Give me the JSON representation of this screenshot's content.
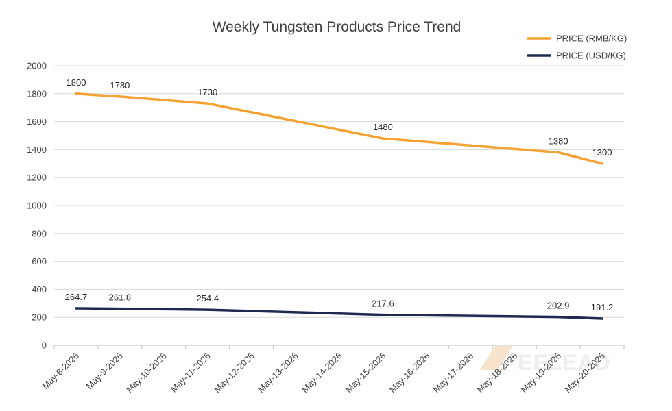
{
  "chart_data": {
    "type": "line",
    "title": "Weekly Tungsten Products Price Trend",
    "xlabel": "",
    "ylabel": "",
    "categories": [
      "May-8-2026",
      "May-9-2026",
      "May-10-2026",
      "May-11-2026",
      "May-12-2026",
      "May-13-2026",
      "May-14-2026",
      "May-15-2026",
      "May-16-2026",
      "May-17-2026",
      "May-18-2026",
      "May-19-2026",
      "May-20-2026"
    ],
    "y_ticks": [
      "0",
      "200",
      "400",
      "600",
      "800",
      "1000",
      "1200",
      "1400",
      "1600",
      "1800",
      "2000"
    ],
    "ylim": [
      0,
      2000
    ],
    "grid": true,
    "legend_position": "top-right",
    "series": [
      {
        "name": "PRICE (RMB/KG)",
        "color": "#f5a232",
        "points": [
          {
            "x": "May-8-2026",
            "y": 1800,
            "label": "1800"
          },
          {
            "x": "May-9-2026",
            "y": 1780,
            "label": "1780"
          },
          {
            "x": "May-11-2026",
            "y": 1730,
            "label": "1730"
          },
          {
            "x": "May-15-2026",
            "y": 1480,
            "label": "1480"
          },
          {
            "x": "May-19-2026",
            "y": 1380,
            "label": "1380"
          },
          {
            "x": "May-20-2026",
            "y": 1300,
            "label": "1300"
          }
        ]
      },
      {
        "name": "PRICE (USD/KG)",
        "color": "#1f2a52",
        "points": [
          {
            "x": "May-8-2026",
            "y": 264.7,
            "label": "264.7"
          },
          {
            "x": "May-9-2026",
            "y": 261.8,
            "label": "261.8"
          },
          {
            "x": "May-11-2026",
            "y": 254.4,
            "label": "254.4"
          },
          {
            "x": "May-15-2026",
            "y": 217.6,
            "label": "217.6"
          },
          {
            "x": "May-19-2026",
            "y": 202.9,
            "label": "202.9"
          },
          {
            "x": "May-20-2026",
            "y": 191.2,
            "label": "191.2"
          }
        ]
      }
    ]
  },
  "watermark": {
    "text": "EELEAD",
    "color": "#f7e3cc"
  }
}
